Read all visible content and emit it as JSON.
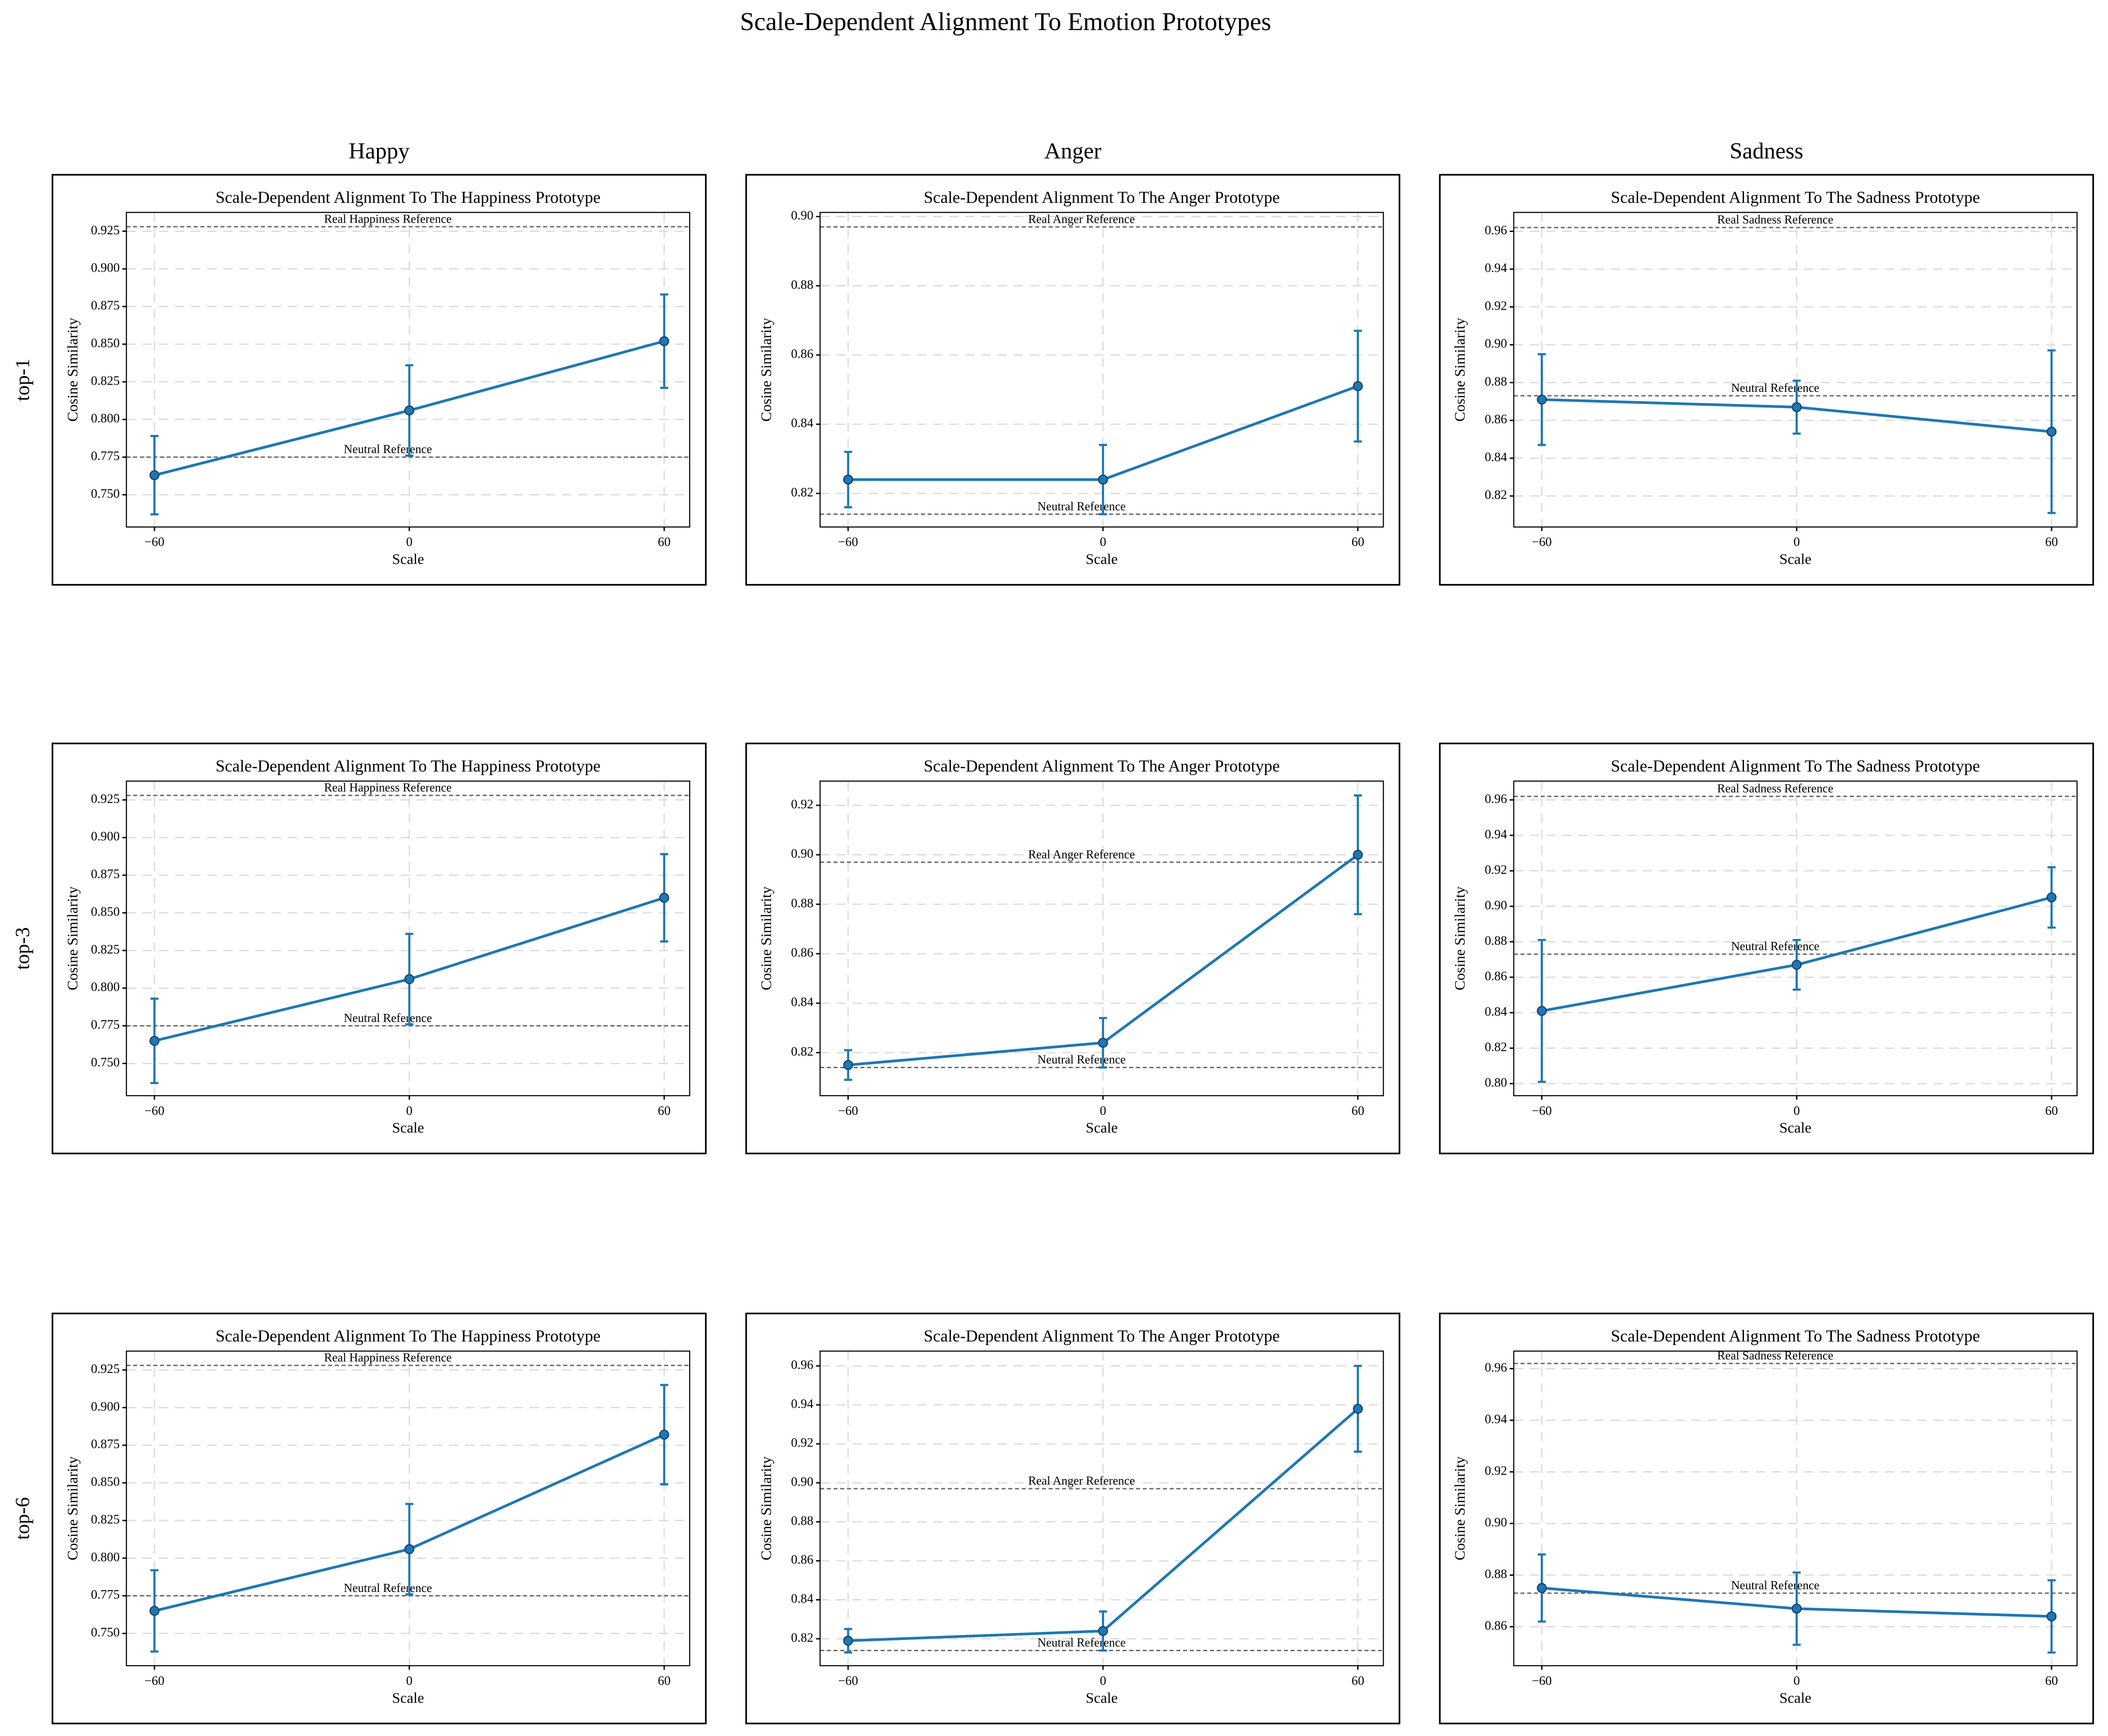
{
  "figure": {
    "title": "Scale-Dependent Alignment To Emotion Prototypes",
    "columns": [
      "Happy",
      "Anger",
      "Sadness"
    ],
    "rows": [
      "top-1",
      "top-3",
      "top-6"
    ]
  },
  "chart_data": [
    {
      "type": "line",
      "title": "Scale-Dependent Alignment To The Happiness Prototype",
      "xlabel": "Scale",
      "ylabel": "Cosine Similarity",
      "x": [
        -60,
        0,
        60
      ],
      "series": [
        {
          "color": "#1f77b4",
          "values": [
            0.763,
            0.806,
            0.852
          ],
          "errors": [
            0.026,
            0.03,
            0.031
          ]
        }
      ],
      "reference_lines": [
        {
          "label": "Real Happiness Reference",
          "value": 0.928
        },
        {
          "label": "Neutral Reference",
          "value": 0.775
        }
      ],
      "xlim": [
        -66.6,
        66.0
      ],
      "xticks": [
        {
          "value": -60,
          "label": "−60"
        },
        0,
        60
      ],
      "ylim": [
        0.7286,
        0.9375
      ],
      "yticks": [
        {
          "value": 0.75,
          "label": "0.750"
        },
        0.775,
        {
          "value": 0.8,
          "label": "0.800"
        },
        0.825,
        {
          "value": 0.85,
          "label": "0.850"
        },
        0.875,
        {
          "value": 0.9,
          "label": "0.900"
        },
        0.925
      ],
      "grid": true
    },
    {
      "type": "line",
      "title": "Scale-Dependent Alignment To The Anger Prototype",
      "xlabel": "Scale",
      "ylabel": "Cosine Similarity",
      "x": [
        -60,
        0,
        60
      ],
      "series": [
        {
          "color": "#1f77b4",
          "values": [
            0.824,
            0.824,
            0.851
          ],
          "errors": [
            0.008,
            0.01,
            0.016
          ]
        }
      ],
      "reference_lines": [
        {
          "label": "Real Anger Reference",
          "value": 0.897
        },
        {
          "label": "Neutral Reference",
          "value": 0.814
        }
      ],
      "xlim": [
        -66.6,
        66.0
      ],
      "xticks": [
        {
          "value": -60,
          "label": "−60"
        },
        0,
        60
      ],
      "ylim": [
        0.8103,
        0.9012
      ],
      "yticks": [
        0.82,
        0.84,
        0.86,
        0.88,
        {
          "value": 0.9,
          "label": "0.90"
        }
      ],
      "grid": true
    },
    {
      "type": "line",
      "title": "Scale-Dependent Alignment To The Sadness Prototype",
      "xlabel": "Scale",
      "ylabel": "Cosine Similarity",
      "x": [
        -60,
        0,
        60
      ],
      "series": [
        {
          "color": "#1f77b4",
          "values": [
            0.871,
            0.867,
            0.854
          ],
          "errors": [
            0.024,
            0.014,
            0.043
          ]
        }
      ],
      "reference_lines": [
        {
          "label": "Real Sadness Reference",
          "value": 0.962
        },
        {
          "label": "Neutral Reference",
          "value": 0.873
        }
      ],
      "xlim": [
        -66.6,
        66.0
      ],
      "xticks": [
        {
          "value": -60,
          "label": "−60"
        },
        0,
        60
      ],
      "ylim": [
        0.8036,
        0.97
      ],
      "yticks": [
        0.82,
        0.84,
        0.86,
        0.88,
        {
          "value": 0.9,
          "label": "0.90"
        },
        0.92,
        0.94,
        0.96
      ],
      "grid": true
    },
    {
      "type": "line",
      "title": "Scale-Dependent Alignment To The Happiness Prototype",
      "xlabel": "Scale",
      "ylabel": "Cosine Similarity",
      "x": [
        -60,
        0,
        60
      ],
      "series": [
        {
          "color": "#1f77b4",
          "values": [
            0.765,
            0.806,
            0.86
          ],
          "errors": [
            0.028,
            0.03,
            0.029
          ]
        }
      ],
      "reference_lines": [
        {
          "label": "Real Happiness Reference",
          "value": 0.928
        },
        {
          "label": "Neutral Reference",
          "value": 0.775
        }
      ],
      "xlim": [
        -66.6,
        66.0
      ],
      "xticks": [
        {
          "value": -60,
          "label": "−60"
        },
        0,
        60
      ],
      "ylim": [
        0.7286,
        0.9375
      ],
      "yticks": [
        {
          "value": 0.75,
          "label": "0.750"
        },
        0.775,
        {
          "value": 0.8,
          "label": "0.800"
        },
        0.825,
        {
          "value": 0.85,
          "label": "0.850"
        },
        0.875,
        {
          "value": 0.9,
          "label": "0.900"
        },
        0.925
      ],
      "grid": true
    },
    {
      "type": "line",
      "title": "Scale-Dependent Alignment To The Anger Prototype",
      "xlabel": "Scale",
      "ylabel": "Cosine Similarity",
      "x": [
        -60,
        0,
        60
      ],
      "series": [
        {
          "color": "#1f77b4",
          "values": [
            0.815,
            0.824,
            0.9
          ],
          "errors": [
            0.006,
            0.01,
            0.024
          ]
        }
      ],
      "reference_lines": [
        {
          "label": "Real Anger Reference",
          "value": 0.897
        },
        {
          "label": "Neutral Reference",
          "value": 0.814
        }
      ],
      "xlim": [
        -66.6,
        66.0
      ],
      "xticks": [
        {
          "value": -60,
          "label": "−60"
        },
        0,
        60
      ],
      "ylim": [
        0.8026,
        0.9298
      ],
      "yticks": [
        0.82,
        0.84,
        0.86,
        0.88,
        {
          "value": 0.9,
          "label": "0.90"
        },
        0.92
      ],
      "grid": true
    },
    {
      "type": "line",
      "title": "Scale-Dependent Alignment To The Sadness Prototype",
      "xlabel": "Scale",
      "ylabel": "Cosine Similarity",
      "x": [
        -60,
        0,
        60
      ],
      "series": [
        {
          "color": "#1f77b4",
          "values": [
            0.841,
            0.867,
            0.905
          ],
          "errors": [
            0.04,
            0.014,
            0.017
          ]
        }
      ],
      "reference_lines": [
        {
          "label": "Real Sadness Reference",
          "value": 0.962
        },
        {
          "label": "Neutral Reference",
          "value": 0.873
        }
      ],
      "xlim": [
        -66.6,
        66.0
      ],
      "xticks": [
        {
          "value": -60,
          "label": "−60"
        },
        0,
        60
      ],
      "ylim": [
        0.7932,
        0.9706
      ],
      "yticks": [
        {
          "value": 0.8,
          "label": "0.80"
        },
        0.82,
        0.84,
        0.86,
        0.88,
        {
          "value": 0.9,
          "label": "0.90"
        },
        0.92,
        0.94,
        0.96
      ],
      "grid": true
    },
    {
      "type": "line",
      "title": "Scale-Dependent Alignment To The Happiness Prototype",
      "xlabel": "Scale",
      "ylabel": "Cosine Similarity",
      "x": [
        -60,
        0,
        60
      ],
      "series": [
        {
          "color": "#1f77b4",
          "values": [
            0.765,
            0.806,
            0.882
          ],
          "errors": [
            0.027,
            0.03,
            0.033
          ]
        }
      ],
      "reference_lines": [
        {
          "label": "Real Happiness Reference",
          "value": 0.928
        },
        {
          "label": "Neutral Reference",
          "value": 0.775
        }
      ],
      "xlim": [
        -66.6,
        66.0
      ],
      "xticks": [
        {
          "value": -60,
          "label": "−60"
        },
        0,
        60
      ],
      "ylim": [
        0.7286,
        0.9375
      ],
      "yticks": [
        {
          "value": 0.75,
          "label": "0.750"
        },
        0.775,
        {
          "value": 0.8,
          "label": "0.800"
        },
        0.825,
        {
          "value": 0.85,
          "label": "0.850"
        },
        0.875,
        {
          "value": 0.9,
          "label": "0.900"
        },
        0.925
      ],
      "grid": true
    },
    {
      "type": "line",
      "title": "Scale-Dependent Alignment To The Anger Prototype",
      "xlabel": "Scale",
      "ylabel": "Cosine Similarity",
      "x": [
        -60,
        0,
        60
      ],
      "series": [
        {
          "color": "#1f77b4",
          "values": [
            0.819,
            0.824,
            0.938
          ],
          "errors": [
            0.006,
            0.01,
            0.022
          ]
        }
      ],
      "reference_lines": [
        {
          "label": "Real Anger Reference",
          "value": 0.897
        },
        {
          "label": "Neutral Reference",
          "value": 0.814
        }
      ],
      "xlim": [
        -66.6,
        66.0
      ],
      "xticks": [
        {
          "value": -60,
          "label": "−60"
        },
        0,
        60
      ],
      "ylim": [
        0.8062,
        0.9676
      ],
      "yticks": [
        0.82,
        0.84,
        0.86,
        0.88,
        {
          "value": 0.9,
          "label": "0.90"
        },
        0.92,
        0.94,
        0.96
      ],
      "grid": true
    },
    {
      "type": "line",
      "title": "Scale-Dependent Alignment To The Sadness Prototype",
      "xlabel": "Scale",
      "ylabel": "Cosine Similarity",
      "x": [
        -60,
        0,
        60
      ],
      "series": [
        {
          "color": "#1f77b4",
          "values": [
            0.875,
            0.867,
            0.864
          ],
          "errors": [
            0.013,
            0.014,
            0.014
          ]
        }
      ],
      "reference_lines": [
        {
          "label": "Real Sadness Reference",
          "value": 0.962
        },
        {
          "label": "Neutral Reference",
          "value": 0.873
        }
      ],
      "xlim": [
        -66.6,
        66.0
      ],
      "xticks": [
        {
          "value": -60,
          "label": "−60"
        },
        0,
        60
      ],
      "ylim": [
        0.8449,
        0.9668
      ],
      "yticks": [
        0.86,
        0.88,
        {
          "value": 0.9,
          "label": "0.90"
        },
        0.92,
        0.94,
        0.96
      ],
      "grid": true
    }
  ]
}
